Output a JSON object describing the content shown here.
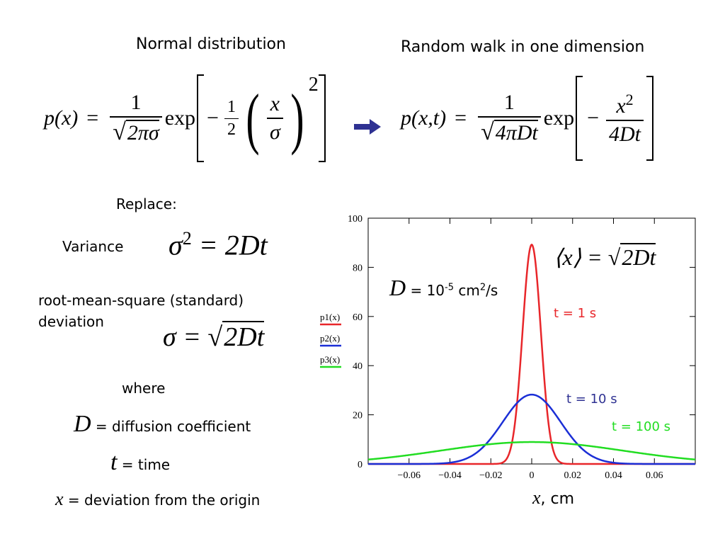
{
  "headings": {
    "normal": "Normal distribution",
    "random_walk": "Random walk in one dimension"
  },
  "normal_eq": {
    "lhs": "p(x)",
    "eq": "=",
    "num": "1",
    "den_inner": "2πσ",
    "exp": "exp",
    "minus": "−",
    "half_num": "1",
    "half_den": "2",
    "x": "x",
    "sigma": "σ",
    "power": "2"
  },
  "walk_eq": {
    "lhs": "p(x,t)",
    "eq": "=",
    "num": "1",
    "den_inner": "4πDt",
    "exp": "exp",
    "minus": "−",
    "frac_num_x": "x",
    "frac_num_pow": "2",
    "frac_den": "4Dt"
  },
  "arrow_color": "#2e3192",
  "replace": {
    "title": "Replace:",
    "variance_label": "Variance",
    "variance_lhs": "σ",
    "variance_pow": "2",
    "variance_rhs": "= 2Dt",
    "rms_label_1": "root-mean-square (standard)",
    "rms_label_2": "deviation",
    "rms_lhs": "σ =",
    "rms_inner": "2Dt",
    "where": "where",
    "D_sym": "D",
    "D_def": " = diffusion coefficient",
    "t_sym": "t",
    "t_def": " = time",
    "x_sym": "x",
    "x_def": " = deviation from the origin"
  },
  "plot_text": {
    "mean_lhs": "⟨x⟩ =",
    "mean_inner": "2Dt",
    "D_sym": "D",
    "D_eq": " = 10",
    "D_exp": "-5",
    "D_unit": " cm",
    "D_unit_exp": "2",
    "D_unit_tail": "/s",
    "t1": "t = 1 s",
    "t10": "t = 10 s",
    "t100": "t = 100 s",
    "xlabel_sym": "x",
    "xlabel_rest": ", cm"
  },
  "chart_data": {
    "type": "line",
    "xlim": [
      -0.08,
      0.08
    ],
    "ylim": [
      0,
      100
    ],
    "x_ticks": [
      -0.06,
      -0.04,
      -0.02,
      0,
      0.02,
      0.04,
      0.06
    ],
    "x_tick_labels": [
      "−0.06",
      "−0.04",
      "−0.02",
      "0",
      "0.02",
      "0.04",
      "0.06"
    ],
    "y_ticks": [
      0,
      20,
      40,
      60,
      80,
      100
    ],
    "y_tick_labels": [
      "0",
      "20",
      "40",
      "60",
      "80",
      "100"
    ],
    "grid": false,
    "legend": "left",
    "D": 1e-05,
    "series": [
      {
        "name": "p1(x)",
        "t": 1,
        "color": "#e8262a",
        "peak": 89.2
      },
      {
        "name": "p2(x)",
        "t": 10,
        "color": "#1b2fd6",
        "peak": 28.2
      },
      {
        "name": "p3(x)",
        "t": 100,
        "color": "#22dd22",
        "peak": 8.9
      }
    ]
  }
}
